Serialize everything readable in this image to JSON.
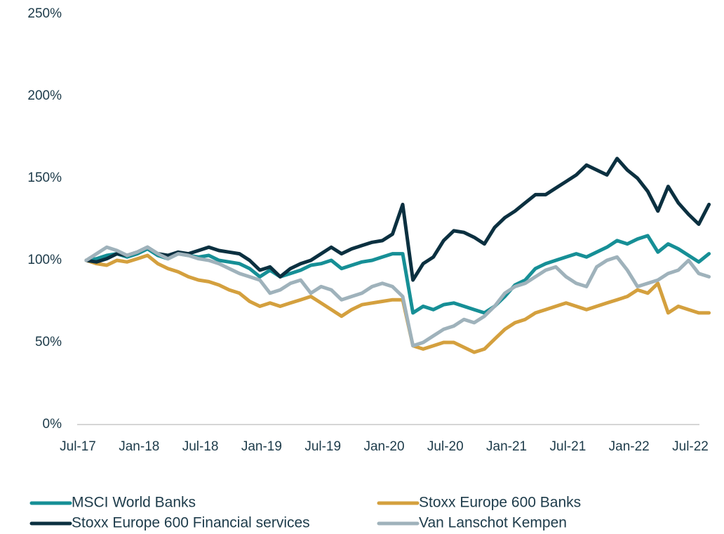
{
  "chart_data": {
    "type": "line",
    "categories": [
      "Jul-17",
      null,
      null,
      null,
      null,
      null,
      "Jan-18",
      null,
      null,
      null,
      null,
      null,
      "Jul-18",
      null,
      null,
      null,
      null,
      null,
      "Jan-19",
      null,
      null,
      null,
      null,
      null,
      "Jul-19",
      null,
      null,
      null,
      null,
      null,
      "Jan-20",
      null,
      null,
      null,
      null,
      null,
      "Jul-20",
      null,
      null,
      null,
      null,
      null,
      "Jan-21",
      null,
      null,
      null,
      null,
      null,
      "Jul-21",
      null,
      null,
      null,
      null,
      null,
      "Jan-22",
      null,
      null,
      null,
      null,
      null,
      "Jul-22",
      null
    ],
    "ylim": [
      0,
      250
    ],
    "yticks": [
      {
        "value": 0,
        "label": "0%"
      },
      {
        "value": 50,
        "label": "50%"
      },
      {
        "value": 100,
        "label": "100%"
      },
      {
        "value": 150,
        "label": "150%"
      },
      {
        "value": 200,
        "label": "200%"
      },
      {
        "value": 250,
        "label": "250%"
      }
    ],
    "legend": "bottom",
    "series": [
      {
        "name": "MSCI World Banks",
        "color": "#168f96",
        "values": [
          100,
          101,
          103,
          104,
          102,
          104,
          107,
          103,
          101,
          104,
          103,
          102,
          103,
          100,
          99,
          98,
          95,
          90,
          94,
          90,
          92,
          94,
          97,
          98,
          100,
          95,
          97,
          99,
          100,
          102,
          104,
          104,
          68,
          72,
          70,
          73,
          74,
          72,
          70,
          68,
          72,
          78,
          85,
          88,
          95,
          98,
          100,
          102,
          104,
          102,
          105,
          108,
          112,
          110,
          113,
          115,
          105,
          110,
          107,
          103,
          99,
          104
        ]
      },
      {
        "name": "Stoxx Europe 600 Banks",
        "color": "#d4a03e",
        "values": [
          100,
          98,
          97,
          100,
          99,
          101,
          103,
          98,
          95,
          93,
          90,
          88,
          87,
          85,
          82,
          80,
          75,
          72,
          74,
          72,
          74,
          76,
          78,
          74,
          70,
          66,
          70,
          73,
          74,
          75,
          76,
          76,
          48,
          46,
          48,
          50,
          50,
          47,
          44,
          46,
          52,
          58,
          62,
          64,
          68,
          70,
          72,
          74,
          72,
          70,
          72,
          74,
          76,
          78,
          82,
          80,
          86,
          68,
          72,
          70,
          68,
          68
        ]
      },
      {
        "name": "Stoxx Europe 600 Financial services",
        "color": "#0b3040",
        "values": [
          100,
          99,
          101,
          104,
          103,
          105,
          108,
          104,
          103,
          105,
          104,
          106,
          108,
          106,
          105,
          104,
          100,
          94,
          96,
          90,
          95,
          98,
          100,
          104,
          108,
          104,
          107,
          109,
          111,
          112,
          116,
          134,
          88,
          98,
          102,
          112,
          118,
          117,
          114,
          110,
          120,
          126,
          130,
          135,
          140,
          140,
          144,
          148,
          152,
          158,
          155,
          152,
          162,
          155,
          150,
          142,
          130,
          145,
          135,
          128,
          122,
          134
        ]
      },
      {
        "name": "Van Lanschot Kempen",
        "color": "#9fb2bb",
        "values": [
          100,
          104,
          108,
          106,
          103,
          105,
          108,
          104,
          101,
          104,
          103,
          101,
          100,
          98,
          95,
          92,
          90,
          88,
          80,
          82,
          86,
          88,
          80,
          84,
          82,
          76,
          78,
          80,
          84,
          86,
          84,
          78,
          48,
          50,
          54,
          58,
          60,
          64,
          62,
          66,
          72,
          80,
          84,
          86,
          90,
          94,
          96,
          90,
          86,
          84,
          96,
          100,
          102,
          94,
          84,
          86,
          88,
          92,
          94,
          100,
          92,
          90
        ]
      }
    ]
  }
}
